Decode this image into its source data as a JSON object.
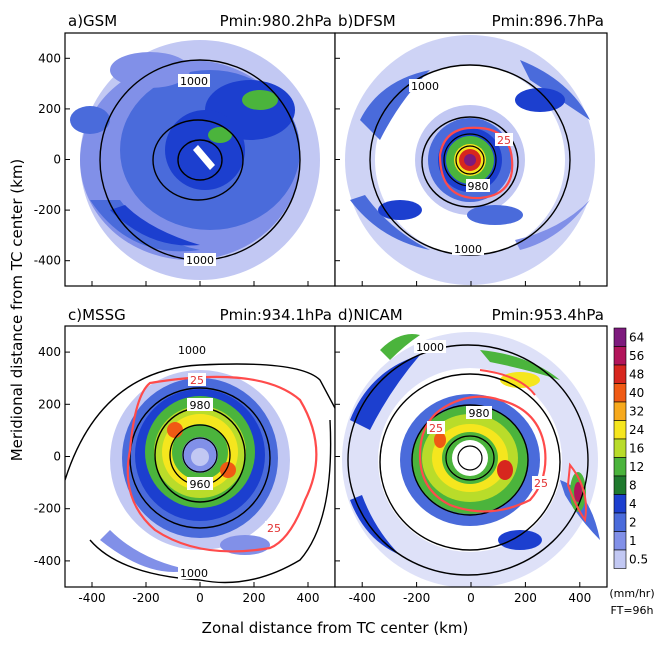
{
  "figure": {
    "xlabel": "Zonal distance from TC center (km)",
    "ylabel": "Meridional distance from TC center (km)",
    "colorbar_unit": "(mm/hr)",
    "forecast_time": "FT=96h"
  },
  "chart_data": [
    {
      "type": "heatmap",
      "panel": "a",
      "title": "a)GSM",
      "pmin_label": "Pmin:980.2hPa",
      "xlim": [
        -500,
        500
      ],
      "ylim": [
        -500,
        500
      ],
      "xticks": [
        -400,
        -200,
        0,
        200,
        400
      ],
      "yticks": [
        -400,
        -200,
        0,
        200,
        400
      ],
      "pressure_contours": [
        {
          "value": 1000,
          "labels": [
            {
              "text": "1000",
              "x": -10,
              "y": 240
            },
            {
              "text": "1000",
              "x": -10,
              "y": -255
            }
          ]
        }
      ],
      "rain_25_contour": false
    },
    {
      "type": "heatmap",
      "panel": "b",
      "title": "b)DFSM",
      "pmin_label": "Pmin:896.7hPa",
      "xlim": [
        -500,
        500
      ],
      "ylim": [
        -500,
        500
      ],
      "xticks": [
        -400,
        -200,
        0,
        200,
        400
      ],
      "yticks": [
        -400,
        -200,
        0,
        200,
        400
      ],
      "pressure_contours": [
        {
          "value": 1000,
          "labels": [
            {
              "text": "1000",
              "x": -200,
              "y": 220
            },
            {
              "text": "1000",
              "x": 70,
              "y": -240
            }
          ]
        },
        {
          "value": 980,
          "labels": [
            {
              "text": "980",
              "x": 0,
              "y": -60
            }
          ]
        }
      ],
      "rain_25_contour": true,
      "rain_25_labels": [
        {
          "text": "25",
          "x": 140,
          "y": 65
        }
      ]
    },
    {
      "type": "heatmap",
      "panel": "c",
      "title": "c)MSSG",
      "pmin_label": "Pmin:934.1hPa",
      "xlim": [
        -500,
        500
      ],
      "ylim": [
        -500,
        500
      ],
      "xticks": [
        -400,
        -200,
        0,
        200,
        400
      ],
      "yticks": [
        -400,
        -200,
        0,
        200,
        400
      ],
      "pressure_contours": [
        {
          "value": 1000,
          "labels": [
            {
              "text": "1000",
              "x": -40,
              "y": 420
            },
            {
              "text": "1000",
              "x": -30,
              "y": -450
            }
          ]
        },
        {
          "value": 980,
          "labels": [
            {
              "text": "980",
              "x": 0,
              "y": 165
            }
          ]
        },
        {
          "value": 960,
          "labels": [
            {
              "text": "960",
              "x": 0,
              "y": -80
            }
          ]
        }
      ],
      "rain_25_contour": true,
      "rain_25_labels": [
        {
          "text": "25",
          "x": -10,
          "y": 300
        },
        {
          "text": "25",
          "x": 270,
          "y": -260
        }
      ]
    },
    {
      "type": "heatmap",
      "panel": "d",
      "title": "d)NICAM",
      "pmin_label": "Pmin:953.4hPa",
      "xlim": [
        -500,
        500
      ],
      "ylim": [
        -500,
        500
      ],
      "xticks": [
        -400,
        -200,
        0,
        200,
        400
      ],
      "yticks": [
        -400,
        -200,
        0,
        200,
        400
      ],
      "pressure_contours": [
        {
          "value": 1000,
          "labels": [
            {
              "text": "1000",
              "x": -160,
              "y": 420
            }
          ]
        },
        {
          "value": 980,
          "labels": [
            {
              "text": "980",
              "x": 20,
              "y": 175
            }
          ]
        }
      ],
      "rain_25_contour": true,
      "rain_25_labels": [
        {
          "text": "25",
          "x": -40,
          "y": 140
        },
        {
          "text": "25",
          "x": 340,
          "y": -80
        }
      ]
    }
  ],
  "colorbar": {
    "levels": [
      "64",
      "56",
      "48",
      "40",
      "32",
      "24",
      "16",
      "12",
      "8",
      "4",
      "2",
      "1",
      "0.5"
    ],
    "colors": [
      "#7d1a7d",
      "#b2145a",
      "#d7261e",
      "#f05a14",
      "#f7a91c",
      "#f5e61e",
      "#b9dc2a",
      "#4bb43c",
      "#1f7a2e",
      "#1c3fcf",
      "#4a6bdb",
      "#8190e8",
      "#c2c8f3"
    ]
  }
}
